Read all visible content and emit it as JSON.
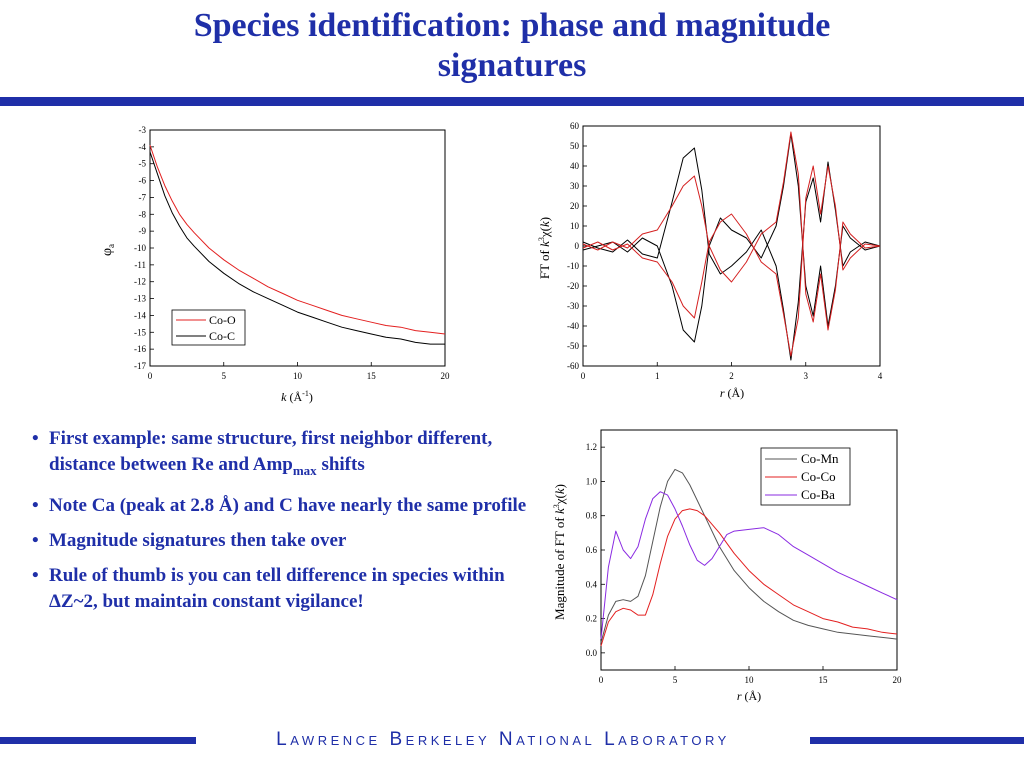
{
  "slide": {
    "title_line1": "Species identification: phase and magnitude",
    "title_line2": "signatures",
    "footer": "Lawrence Berkeley National Laboratory",
    "accent_color": "#1f2fa8"
  },
  "bullets": [
    {
      "text_before": "First example: same structure, first neighbor different, distance between Re and Amp",
      "subscript": "max",
      "text_after": " shifts"
    },
    {
      "text_before": "Note Ca (peak at 2.8 Å) and C have nearly the same profile",
      "subscript": "",
      "text_after": ""
    },
    {
      "text_before": "Magnitude signatures then take over",
      "subscript": "",
      "text_after": ""
    },
    {
      "text_before": "Rule of thumb is you can tell difference in species within ΔZ~2, but maintain constant vigilance!",
      "subscript": "",
      "text_after": ""
    }
  ],
  "chart_data": [
    {
      "type": "line",
      "xlabel": "k (Å⁻¹)",
      "ylabel": "φa",
      "xlim": [
        0,
        20
      ],
      "ylim": [
        -17,
        -3
      ],
      "xticks": [
        0,
        5,
        10,
        15,
        20
      ],
      "yticks": [
        -3,
        -4,
        -5,
        -6,
        -7,
        -8,
        -9,
        -10,
        -11,
        -12,
        -13,
        -14,
        -15,
        -16,
        -17
      ],
      "legend_position": "bottom-center",
      "series": [
        {
          "name": "Co-O",
          "color": "#e32020",
          "x": [
            0,
            0.5,
            1,
            1.5,
            2,
            2.5,
            3,
            4,
            5,
            6,
            7,
            8,
            9,
            10,
            11,
            12,
            13,
            14,
            15,
            16,
            17,
            18,
            19,
            20
          ],
          "y": [
            -3.9,
            -5.2,
            -6.3,
            -7.2,
            -8.0,
            -8.6,
            -9.1,
            -10.0,
            -10.7,
            -11.3,
            -11.8,
            -12.3,
            -12.7,
            -13.1,
            -13.4,
            -13.7,
            -14.0,
            -14.2,
            -14.4,
            -14.6,
            -14.7,
            -14.9,
            -15.0,
            -15.1
          ]
        },
        {
          "name": "Co-C",
          "color": "#000000",
          "x": [
            0,
            0.5,
            1,
            1.5,
            2,
            2.5,
            3,
            4,
            5,
            6,
            7,
            8,
            9,
            10,
            11,
            12,
            13,
            14,
            15,
            16,
            17,
            18,
            19,
            20
          ],
          "y": [
            -4.3,
            -5.6,
            -6.9,
            -7.9,
            -8.7,
            -9.4,
            -9.9,
            -10.8,
            -11.5,
            -12.1,
            -12.6,
            -13.0,
            -13.4,
            -13.8,
            -14.1,
            -14.4,
            -14.7,
            -14.9,
            -15.1,
            -15.3,
            -15.4,
            -15.6,
            -15.7,
            -15.7
          ]
        }
      ]
    },
    {
      "type": "line",
      "xlabel": "r (Å)",
      "ylabel": "FT of k³χ(k)",
      "xlim": [
        0,
        4
      ],
      "ylim": [
        -60,
        60
      ],
      "xticks": [
        0,
        1,
        2,
        3,
        4
      ],
      "yticks": [
        60,
        50,
        40,
        30,
        20,
        10,
        0,
        -10,
        -20,
        -30,
        -40,
        -50,
        -60
      ],
      "series": [
        {
          "name": "",
          "color": "#000000",
          "x": [
            0,
            0.2,
            0.4,
            0.6,
            0.8,
            1.0,
            1.2,
            1.35,
            1.5,
            1.6,
            1.7,
            1.85,
            2.0,
            2.2,
            2.4,
            2.6,
            2.7,
            2.8,
            2.9,
            3.0,
            3.1,
            3.2,
            3.3,
            3.4,
            3.5,
            3.6,
            3.8,
            4.0
          ],
          "y": [
            -2,
            0,
            2,
            -3,
            4,
            0,
            -20,
            -42,
            -48,
            -30,
            0,
            14,
            8,
            4,
            -6,
            10,
            30,
            56,
            30,
            -20,
            -35,
            -10,
            -40,
            -20,
            10,
            4,
            -2,
            0
          ]
        },
        {
          "name": "",
          "color": "#000000",
          "x": [
            0,
            0.2,
            0.4,
            0.6,
            0.8,
            1.0,
            1.2,
            1.35,
            1.5,
            1.6,
            1.7,
            1.85,
            2.0,
            2.2,
            2.4,
            2.6,
            2.7,
            2.8,
            2.9,
            3.0,
            3.1,
            3.2,
            3.3,
            3.4,
            3.5,
            3.6,
            3.8,
            4.0
          ],
          "y": [
            2,
            -1,
            -3,
            3,
            -4,
            -6,
            22,
            44,
            49,
            28,
            -4,
            -14,
            -10,
            -3,
            8,
            -10,
            -32,
            -57,
            -28,
            22,
            34,
            12,
            42,
            18,
            -10,
            -3,
            2,
            0
          ]
        },
        {
          "name": "",
          "color": "#d42020",
          "x": [
            0,
            0.2,
            0.4,
            0.6,
            0.8,
            1.0,
            1.2,
            1.35,
            1.5,
            1.6,
            1.7,
            1.85,
            2.0,
            2.2,
            2.4,
            2.6,
            2.7,
            2.8,
            2.9,
            3.0,
            3.1,
            3.2,
            3.3,
            3.4,
            3.5,
            3.6,
            3.8,
            4.0
          ],
          "y": [
            1,
            -2,
            2,
            -1,
            6,
            8,
            20,
            30,
            35,
            20,
            0,
            -12,
            -18,
            -8,
            6,
            12,
            32,
            57,
            36,
            -24,
            -38,
            -14,
            -42,
            -22,
            12,
            6,
            -1,
            0
          ]
        },
        {
          "name": "",
          "color": "#d42020",
          "x": [
            0,
            0.2,
            0.4,
            0.6,
            0.8,
            1.0,
            1.2,
            1.35,
            1.5,
            1.6,
            1.7,
            1.85,
            2.0,
            2.2,
            2.4,
            2.6,
            2.7,
            2.8,
            2.9,
            3.0,
            3.1,
            3.2,
            3.3,
            3.4,
            3.5,
            3.6,
            3.8,
            4.0
          ],
          "y": [
            -1,
            2,
            -2,
            1,
            -6,
            -8,
            -18,
            -30,
            -36,
            -18,
            2,
            12,
            16,
            6,
            -8,
            -14,
            -34,
            -55,
            -36,
            24,
            40,
            16,
            40,
            20,
            -12,
            -6,
            1,
            0
          ]
        }
      ]
    },
    {
      "type": "line",
      "xlabel": "r (Å)",
      "ylabel": "Magnitude of FT of k³χ(k)",
      "xlim": [
        0,
        20
      ],
      "ylim": [
        -0.1,
        1.3
      ],
      "xticks": [
        0,
        5,
        10,
        15,
        20
      ],
      "yticks": [
        1.2,
        1.0,
        0.8,
        0.6,
        0.4,
        0.2,
        0.0
      ],
      "legend_position": "top-right",
      "series": [
        {
          "name": "Co-Mn",
          "color": "#555555",
          "x": [
            0,
            0.5,
            1,
            1.5,
            2,
            2.5,
            3,
            3.5,
            4,
            4.5,
            5,
            5.5,
            6,
            7,
            8,
            9,
            10,
            11,
            12,
            13,
            14,
            15,
            16,
            17,
            18,
            19,
            20
          ],
          "y": [
            0.06,
            0.22,
            0.3,
            0.31,
            0.3,
            0.33,
            0.45,
            0.65,
            0.85,
            1.0,
            1.07,
            1.05,
            0.98,
            0.8,
            0.62,
            0.48,
            0.38,
            0.3,
            0.24,
            0.19,
            0.16,
            0.14,
            0.12,
            0.11,
            0.1,
            0.09,
            0.08
          ]
        },
        {
          "name": "Co-Co",
          "color": "#e32020",
          "x": [
            0,
            0.5,
            1,
            1.5,
            2,
            2.5,
            3,
            3.5,
            4,
            4.5,
            5,
            5.5,
            6,
            6.5,
            7,
            8,
            9,
            10,
            11,
            12,
            13,
            14,
            15,
            16,
            17,
            18,
            19,
            20
          ],
          "y": [
            0.04,
            0.18,
            0.24,
            0.26,
            0.25,
            0.22,
            0.22,
            0.34,
            0.52,
            0.68,
            0.78,
            0.83,
            0.84,
            0.83,
            0.8,
            0.7,
            0.58,
            0.48,
            0.4,
            0.34,
            0.28,
            0.24,
            0.2,
            0.18,
            0.15,
            0.14,
            0.12,
            0.11
          ]
        },
        {
          "name": "Co-Ba",
          "color": "#8a2be2",
          "x": [
            0,
            0.5,
            1,
            1.5,
            2,
            2.5,
            3,
            3.5,
            4,
            4.5,
            5,
            5.5,
            6,
            6.5,
            7,
            7.5,
            8,
            8.5,
            9,
            10,
            11,
            12,
            13,
            14,
            15,
            16,
            17,
            18,
            19,
            20
          ],
          "y": [
            0.08,
            0.5,
            0.71,
            0.6,
            0.55,
            0.62,
            0.78,
            0.9,
            0.94,
            0.92,
            0.84,
            0.74,
            0.63,
            0.54,
            0.51,
            0.55,
            0.62,
            0.69,
            0.71,
            0.72,
            0.73,
            0.69,
            0.62,
            0.57,
            0.52,
            0.47,
            0.43,
            0.39,
            0.35,
            0.31
          ]
        }
      ]
    }
  ]
}
